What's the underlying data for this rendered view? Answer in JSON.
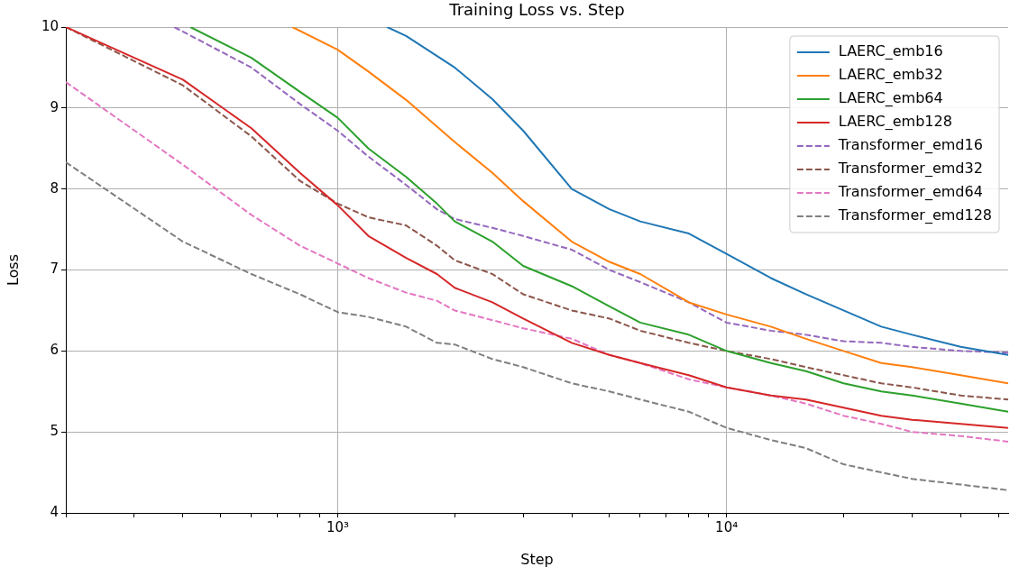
{
  "chart_data": {
    "type": "line",
    "title": "Training Loss vs. Step",
    "xlabel": "Step",
    "ylabel": "Loss",
    "log": "x",
    "grid": true,
    "legend": "top right",
    "marker": "none",
    "xlim": [
      200,
      53000
    ],
    "xticks": [
      {
        "value": 200,
        "label": null
      },
      {
        "value": 300,
        "label": null
      },
      {
        "value": 400,
        "label": null
      },
      {
        "value": 500,
        "label": null
      },
      {
        "value": 600,
        "label": null
      },
      {
        "value": 700,
        "label": null
      },
      {
        "value": 800,
        "label": null
      },
      {
        "value": 900,
        "label": null
      },
      {
        "value": 1000,
        "label": "10³"
      },
      {
        "value": 2000,
        "label": null
      },
      {
        "value": 3000,
        "label": null
      },
      {
        "value": 4000,
        "label": null
      },
      {
        "value": 5000,
        "label": null
      },
      {
        "value": 6000,
        "label": null
      },
      {
        "value": 7000,
        "label": null
      },
      {
        "value": 8000,
        "label": null
      },
      {
        "value": 9000,
        "label": null
      },
      {
        "value": 10000,
        "label": "10⁴"
      },
      {
        "value": 20000,
        "label": null
      },
      {
        "value": 30000,
        "label": null
      },
      {
        "value": 40000,
        "label": null
      },
      {
        "value": 50000,
        "label": null
      }
    ],
    "ylim": [
      4,
      10
    ],
    "yticks": [
      4,
      5,
      6,
      7,
      8,
      9,
      10
    ],
    "series": [
      {
        "name": "LAERC_emb16",
        "color": "#1f77b4",
        "line_style": "solid",
        "x": [
          1340,
          1500,
          2000,
          2500,
          3000,
          4000,
          5000,
          6000,
          8000,
          10000,
          13000,
          16000,
          20000,
          25000,
          30000,
          40000,
          53000
        ],
        "values": [
          10,
          9.89,
          9.5,
          9.11,
          8.72,
          8.0,
          7.75,
          7.6,
          7.45,
          7.2,
          6.9,
          6.7,
          6.5,
          6.3,
          6.2,
          6.05,
          5.95
        ]
      },
      {
        "name": "LAERC_emb32",
        "color": "#ff7f0e",
        "line_style": "solid",
        "x": [
          765,
          1000,
          1200,
          1500,
          2000,
          2500,
          3000,
          4000,
          5000,
          6000,
          8000,
          10000,
          13000,
          16000,
          20000,
          25000,
          30000,
          40000,
          53000
        ],
        "values": [
          10,
          9.72,
          9.45,
          9.1,
          8.58,
          8.2,
          7.85,
          7.35,
          7.1,
          6.95,
          6.6,
          6.45,
          6.3,
          6.15,
          6.0,
          5.85,
          5.8,
          5.7,
          5.6
        ]
      },
      {
        "name": "LAERC_emb64",
        "color": "#2ca02c",
        "line_style": "solid",
        "x": [
          418,
          600,
          800,
          1000,
          1200,
          1500,
          1800,
          2000,
          2500,
          3000,
          4000,
          5000,
          6000,
          8000,
          10000,
          13000,
          16000,
          20000,
          25000,
          30000,
          40000,
          53000
        ],
        "values": [
          10,
          9.62,
          9.2,
          8.88,
          8.5,
          8.15,
          7.82,
          7.6,
          7.35,
          7.05,
          6.8,
          6.55,
          6.35,
          6.2,
          6.0,
          5.85,
          5.75,
          5.6,
          5.5,
          5.45,
          5.35,
          5.25
        ]
      },
      {
        "name": "LAERC_emb128",
        "color": "#d62728",
        "line_style": "solid",
        "x": [
          200,
          400,
          600,
          800,
          1000,
          1200,
          1500,
          1800,
          2000,
          2500,
          3000,
          4000,
          5000,
          6000,
          8000,
          10000,
          13000,
          16000,
          20000,
          25000,
          30000,
          40000,
          53000
        ],
        "values": [
          10,
          9.35,
          8.75,
          8.2,
          7.8,
          7.42,
          7.15,
          6.95,
          6.78,
          6.6,
          6.4,
          6.1,
          5.95,
          5.85,
          5.7,
          5.55,
          5.45,
          5.4,
          5.3,
          5.2,
          5.15,
          5.1,
          5.05
        ]
      },
      {
        "name": "Transformer_emd16",
        "color": "#9467bd",
        "line_style": "dashed",
        "x": [
          380,
          600,
          800,
          1000,
          1200,
          1500,
          1800,
          2000,
          2500,
          3000,
          4000,
          5000,
          6000,
          8000,
          10000,
          13000,
          16000,
          20000,
          25000,
          30000,
          40000,
          53000
        ],
        "values": [
          10,
          9.5,
          9.05,
          8.72,
          8.4,
          8.05,
          7.75,
          7.63,
          7.52,
          7.42,
          7.25,
          7.0,
          6.85,
          6.6,
          6.35,
          6.25,
          6.2,
          6.12,
          6.1,
          6.05,
          6.0,
          5.98
        ]
      },
      {
        "name": "Transformer_emd32",
        "color": "#8c564b",
        "line_style": "dashed",
        "x": [
          200,
          400,
          600,
          800,
          1000,
          1200,
          1500,
          1800,
          2000,
          2500,
          3000,
          4000,
          5000,
          6000,
          8000,
          10000,
          13000,
          16000,
          20000,
          25000,
          30000,
          40000,
          53000
        ],
        "values": [
          10,
          9.28,
          8.65,
          8.1,
          7.82,
          7.65,
          7.55,
          7.3,
          7.12,
          6.95,
          6.7,
          6.5,
          6.4,
          6.25,
          6.1,
          6.0,
          5.9,
          5.8,
          5.7,
          5.6,
          5.55,
          5.45,
          5.4
        ]
      },
      {
        "name": "Transformer_emd64",
        "color": "#e377c2",
        "line_style": "dashed",
        "x": [
          200,
          400,
          600,
          800,
          1000,
          1200,
          1500,
          1800,
          2000,
          2500,
          3000,
          4000,
          5000,
          6000,
          8000,
          10000,
          13000,
          16000,
          20000,
          25000,
          30000,
          40000,
          53000
        ],
        "values": [
          9.32,
          8.3,
          7.68,
          7.3,
          7.08,
          6.9,
          6.72,
          6.62,
          6.5,
          6.38,
          6.28,
          6.15,
          5.95,
          5.85,
          5.65,
          5.55,
          5.45,
          5.35,
          5.2,
          5.1,
          5.0,
          4.95,
          4.88
        ]
      },
      {
        "name": "Transformer_emd128",
        "color": "#7f7f7f",
        "line_style": "dashed",
        "x": [
          200,
          400,
          600,
          800,
          1000,
          1200,
          1500,
          1800,
          2000,
          2500,
          3000,
          4000,
          5000,
          6000,
          8000,
          10000,
          13000,
          16000,
          20000,
          25000,
          30000,
          40000,
          53000
        ],
        "values": [
          8.33,
          7.35,
          6.95,
          6.7,
          6.48,
          6.42,
          6.3,
          6.1,
          6.08,
          5.9,
          5.8,
          5.6,
          5.5,
          5.4,
          5.25,
          5.05,
          4.9,
          4.8,
          4.6,
          4.5,
          4.42,
          4.35,
          4.28
        ]
      }
    ]
  }
}
